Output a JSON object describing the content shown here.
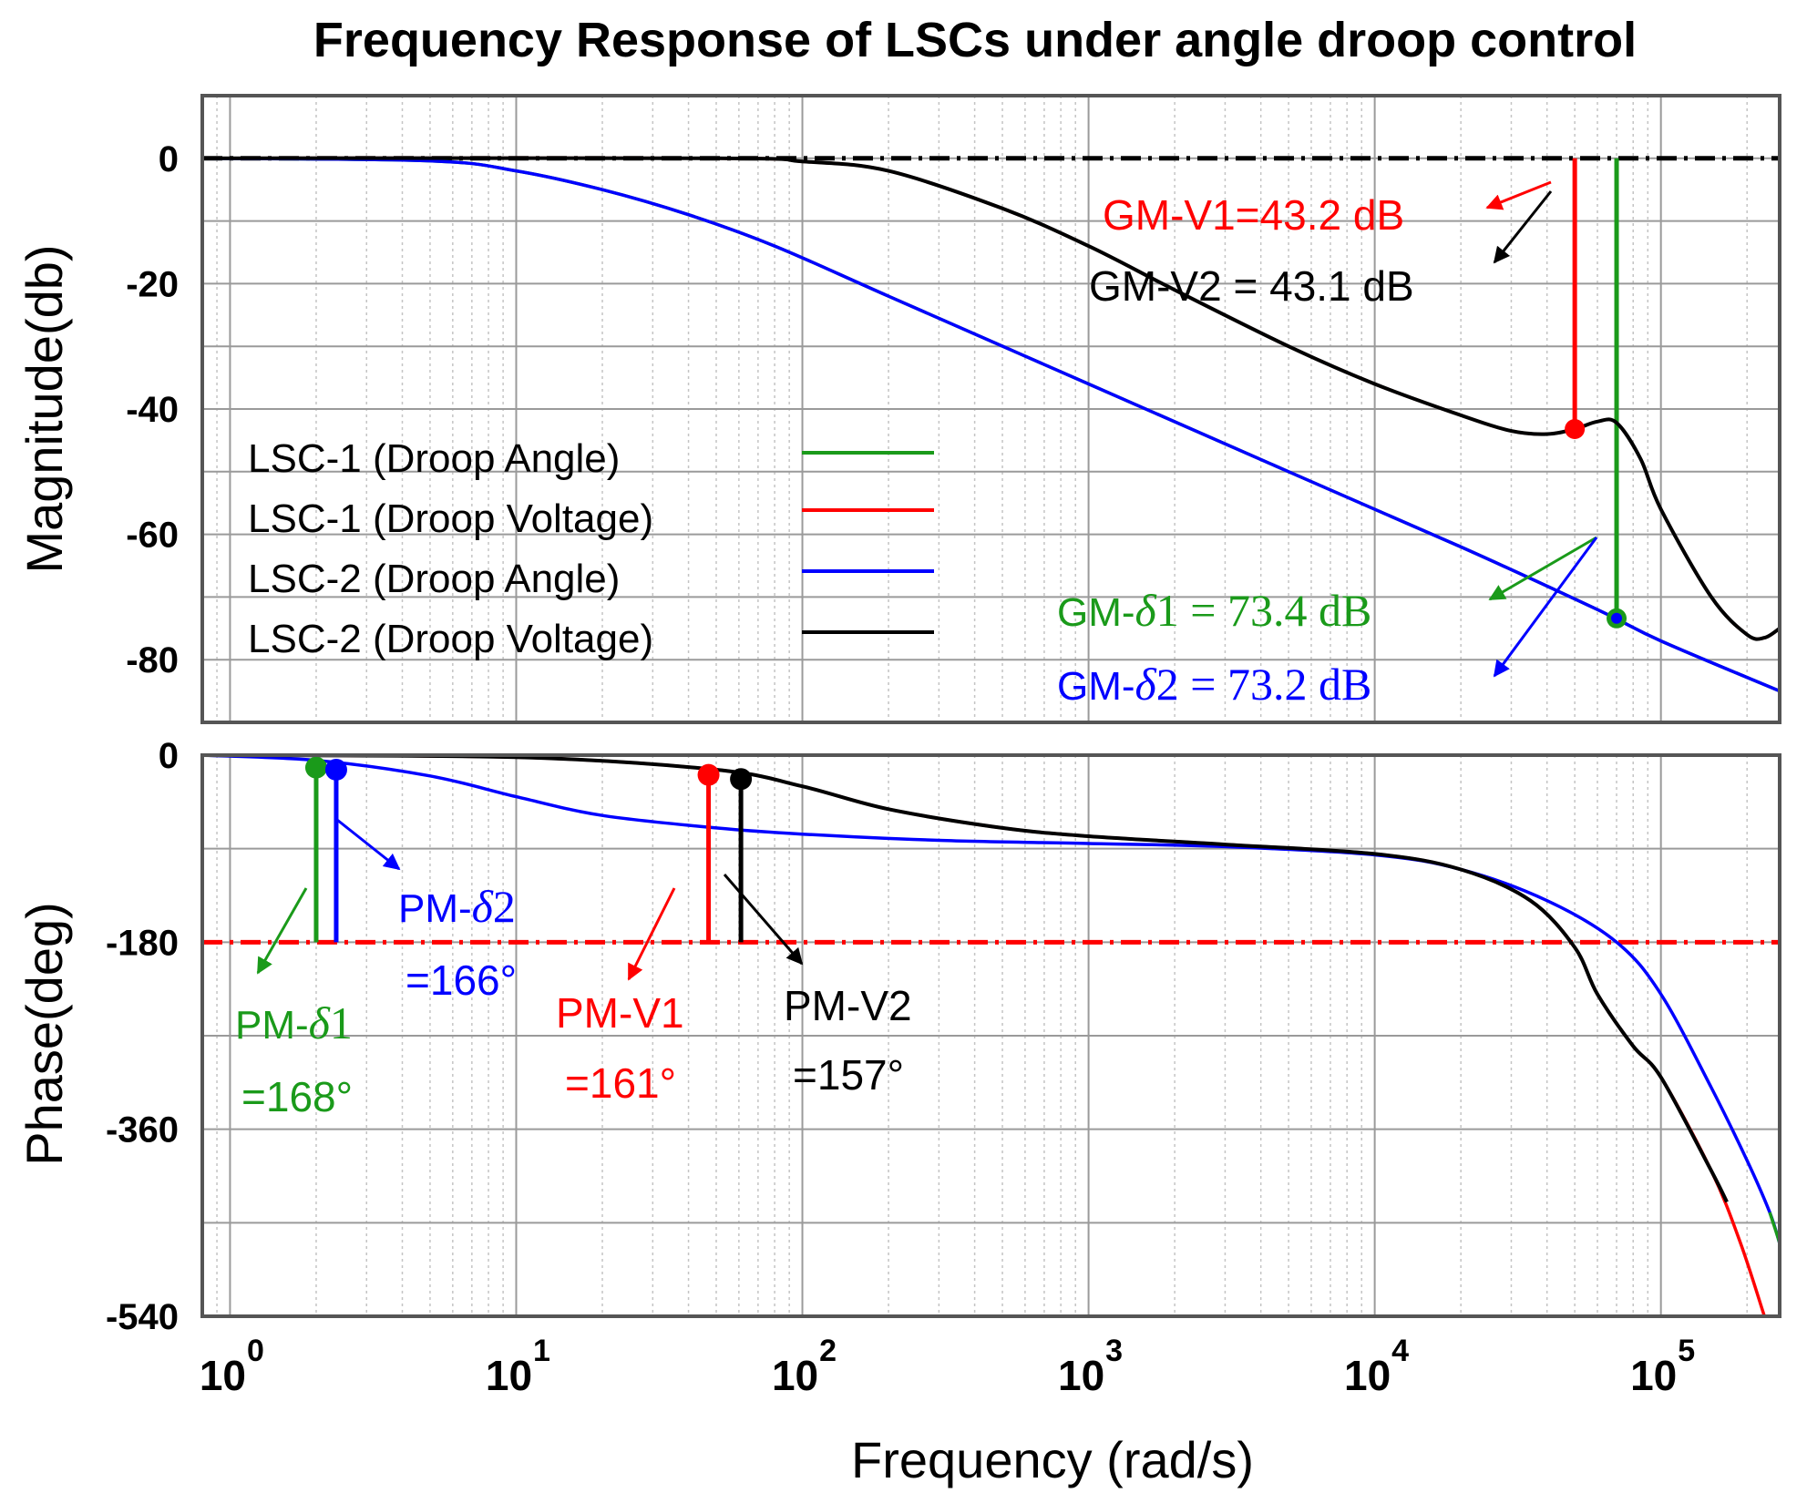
{
  "chart_data": {
    "type": "line",
    "title": "Frequency Response of LSCs under angle droop control",
    "xlabel": "Frequency  (rad/s)",
    "x_scale": "log",
    "x_ticks": [
      {
        "value": 1,
        "base": "10",
        "exp": "0"
      },
      {
        "value": 10,
        "base": "10",
        "exp": "1"
      },
      {
        "value": 100,
        "base": "10",
        "exp": "2"
      },
      {
        "value": 1000,
        "base": "10",
        "exp": "3"
      },
      {
        "value": 10000,
        "base": "10",
        "exp": "4"
      },
      {
        "value": 100000,
        "base": "10",
        "exp": "5"
      }
    ],
    "xlim": [
      0.8,
      260000
    ],
    "magnitude": {
      "ylabel": "Magnitude(db)",
      "ylim": [
        -90,
        10
      ],
      "yticks": [
        {
          "value": 0,
          "label": "0"
        },
        {
          "value": -20,
          "label": "-20"
        },
        {
          "value": -40,
          "label": "-40"
        },
        {
          "value": -60,
          "label": "-60"
        },
        {
          "value": -80,
          "label": "-80"
        }
      ],
      "reference_line": {
        "value": 0,
        "color": "#000000"
      },
      "series": [
        {
          "name": "LSC-1 (Droop Angle)",
          "color": "#1a9a1a",
          "points": [
            [
              0.8,
              0
            ],
            [
              5,
              -0.4
            ],
            [
              10,
              -2
            ],
            [
              20,
              -5
            ],
            [
              40,
              -9
            ],
            [
              80,
              -14
            ],
            [
              200,
              -22
            ],
            [
              1000,
              -36
            ],
            [
              5000,
              -50
            ],
            [
              20000,
              -62
            ],
            [
              60000,
              -72
            ],
            [
              100000,
              -77
            ],
            [
              260000,
              -85
            ]
          ]
        },
        {
          "name": "LSC-1 (Droop Voltage)",
          "color": "#ff0000",
          "points": [
            [
              0.8,
              0
            ],
            [
              50,
              0
            ],
            [
              100,
              -0.5
            ],
            [
              200,
              -2
            ],
            [
              500,
              -8
            ],
            [
              1000,
              -14
            ],
            [
              2000,
              -21
            ],
            [
              5000,
              -30
            ],
            [
              10000,
              -36
            ],
            [
              20000,
              -41
            ],
            [
              30000,
              -43.5
            ],
            [
              40000,
              -44
            ],
            [
              50000,
              -43.2
            ],
            [
              60000,
              -42
            ],
            [
              70000,
              -42.2
            ],
            [
              85000,
              -48
            ],
            [
              100000,
              -56
            ],
            [
              150000,
              -70
            ],
            [
              200000,
              -76
            ],
            [
              230000,
              -76.5
            ],
            [
              260000,
              -75
            ]
          ]
        },
        {
          "name": "LSC-2 (Droop Angle)",
          "color": "#0000ff",
          "points": [
            [
              0.8,
              0
            ],
            [
              5,
              -0.4
            ],
            [
              10,
              -2
            ],
            [
              20,
              -5
            ],
            [
              40,
              -9
            ],
            [
              80,
              -14
            ],
            [
              200,
              -22
            ],
            [
              1000,
              -36
            ],
            [
              5000,
              -50
            ],
            [
              20000,
              -62
            ],
            [
              60000,
              -72
            ],
            [
              100000,
              -77
            ],
            [
              260000,
              -85
            ]
          ]
        },
        {
          "name": "LSC-2 (Droop Voltage)",
          "color": "#000000",
          "points": [
            [
              0.8,
              0
            ],
            [
              50,
              0
            ],
            [
              100,
              -0.5
            ],
            [
              200,
              -2
            ],
            [
              500,
              -8
            ],
            [
              1000,
              -14
            ],
            [
              2000,
              -21
            ],
            [
              5000,
              -30
            ],
            [
              10000,
              -36
            ],
            [
              20000,
              -41
            ],
            [
              30000,
              -43.5
            ],
            [
              40000,
              -44
            ],
            [
              50000,
              -43.2
            ],
            [
              60000,
              -42
            ],
            [
              70000,
              -42.2
            ],
            [
              85000,
              -48
            ],
            [
              100000,
              -56
            ],
            [
              150000,
              -70
            ],
            [
              200000,
              -76
            ],
            [
              230000,
              -76.5
            ],
            [
              260000,
              -75
            ]
          ]
        }
      ],
      "markers": [
        {
          "x": 50000,
          "y": -43.2,
          "color": "#ff0000",
          "line_from": 0
        },
        {
          "x": 70000,
          "y": -73.4,
          "color": "#1a9a1a",
          "line_from": 0
        }
      ],
      "marker_dot_colors": [
        "#1a9a1a",
        "#0000ff"
      ]
    },
    "phase": {
      "ylabel": "Phase(deg)",
      "ylim": [
        -540,
        0
      ],
      "yticks": [
        {
          "value": 0,
          "label": "0"
        },
        {
          "value": -180,
          "label": "-180"
        },
        {
          "value": -360,
          "label": "-360"
        },
        {
          "value": -540,
          "label": "-540"
        }
      ],
      "minor_yticks": [
        -90,
        -270,
        -450
      ],
      "reference_line": {
        "value": -180,
        "color": "#ff0000"
      },
      "series": [
        {
          "name": "LSC-2 (Droop Angle)",
          "color": "#0000ff",
          "points": [
            [
              0.8,
              0
            ],
            [
              2,
              -5
            ],
            [
              5,
              -20
            ],
            [
              10,
              -40
            ],
            [
              20,
              -58
            ],
            [
              50,
              -70
            ],
            [
              100,
              -76
            ],
            [
              300,
              -82
            ],
            [
              1000,
              -85
            ],
            [
              3000,
              -88
            ],
            [
              10000,
              -96
            ],
            [
              20000,
              -110
            ],
            [
              40000,
              -140
            ],
            [
              70000,
              -180
            ],
            [
              100000,
              -230
            ],
            [
              150000,
              -320
            ],
            [
              200000,
              -390
            ],
            [
              240000,
              -440
            ],
            [
              260000,
              -470
            ]
          ]
        },
        {
          "name": "LSC-1 (Droop Angle)",
          "color": "#1a9a1a",
          "points": [
            [
              240000,
              -440
            ],
            [
              250000,
              -455
            ],
            [
              260000,
              -470
            ],
            [
              270000,
              -490
            ]
          ]
        },
        {
          "name": "LSC-1 (Droop Voltage)",
          "color": "#ff0000",
          "points": [
            [
              0.8,
              0
            ],
            [
              10,
              -2
            ],
            [
              50,
              -14
            ],
            [
              100,
              -30
            ],
            [
              200,
              -52
            ],
            [
              500,
              -70
            ],
            [
              1000,
              -78
            ],
            [
              3000,
              -86
            ],
            [
              10000,
              -95
            ],
            [
              20000,
              -110
            ],
            [
              35000,
              -140
            ],
            [
              50000,
              -185
            ],
            [
              60000,
              -230
            ],
            [
              80000,
              -280
            ],
            [
              100000,
              -310
            ],
            [
              150000,
              -400
            ],
            [
              190000,
              -470
            ],
            [
              230000,
              -540
            ]
          ]
        },
        {
          "name": "LSC-2 (Droop Voltage)",
          "color": "#000000",
          "points": [
            [
              0.8,
              0
            ],
            [
              10,
              -2
            ],
            [
              50,
              -14
            ],
            [
              100,
              -30
            ],
            [
              200,
              -52
            ],
            [
              500,
              -70
            ],
            [
              1000,
              -78
            ],
            [
              3000,
              -86
            ],
            [
              10000,
              -95
            ],
            [
              20000,
              -110
            ],
            [
              35000,
              -140
            ],
            [
              50000,
              -185
            ],
            [
              60000,
              -230
            ],
            [
              80000,
              -280
            ],
            [
              100000,
              -310
            ],
            [
              150000,
              -400
            ],
            [
              170000,
              -430
            ]
          ]
        }
      ],
      "markers": [
        {
          "x": 2.0,
          "y": -12,
          "color": "#1a9a1a",
          "line_to": -180
        },
        {
          "x": 2.35,
          "y": -14,
          "color": "#0000ff",
          "line_to": -180
        },
        {
          "x": 47,
          "y": -19,
          "color": "#ff0000",
          "line_to": -180
        },
        {
          "x": 61,
          "y": -23,
          "color": "#000000",
          "line_to": -180
        }
      ]
    },
    "legend": {
      "placement": "magnitude-left",
      "entries": [
        {
          "label": "LSC-1 (Droop Angle)",
          "color": "#1a9a1a"
        },
        {
          "label": "LSC-1 (Droop Voltage)",
          "color": "#ff0000"
        },
        {
          "label": "LSC-2 (Droop Angle)",
          "color": "#0000ff"
        },
        {
          "label": "LSC-2 (Droop Voltage)",
          "color": "#000000"
        }
      ]
    },
    "annotations": {
      "gm_v1": {
        "text": "GM-V1=43.2 dB",
        "color": "#ff0000"
      },
      "gm_v2": {
        "text": "GM-V2 = 43.1 dB",
        "color": "#000000"
      },
      "gm_d1": {
        "prefix": "GM-",
        "delta": "δ",
        "rest": "1 = 73.4 dB",
        "color": "#1a9a1a"
      },
      "gm_d2": {
        "prefix": "GM-",
        "delta": "δ",
        "rest": "2 = 73.2 dB",
        "color": "#0000ff"
      },
      "pm_d1": {
        "prefix": "PM-",
        "delta": "δ",
        "rest": "1",
        "value": "=168°",
        "color": "#1a9a1a"
      },
      "pm_d2": {
        "prefix": "PM-",
        "delta": "δ",
        "rest": "2",
        "value": "=166°",
        "color": "#0000ff"
      },
      "pm_v1": {
        "text": "PM-V1",
        "value": "=161°",
        "color": "#ff0000"
      },
      "pm_v2": {
        "text": "PM-V2",
        "value": "=157°",
        "color": "#000000"
      }
    }
  }
}
